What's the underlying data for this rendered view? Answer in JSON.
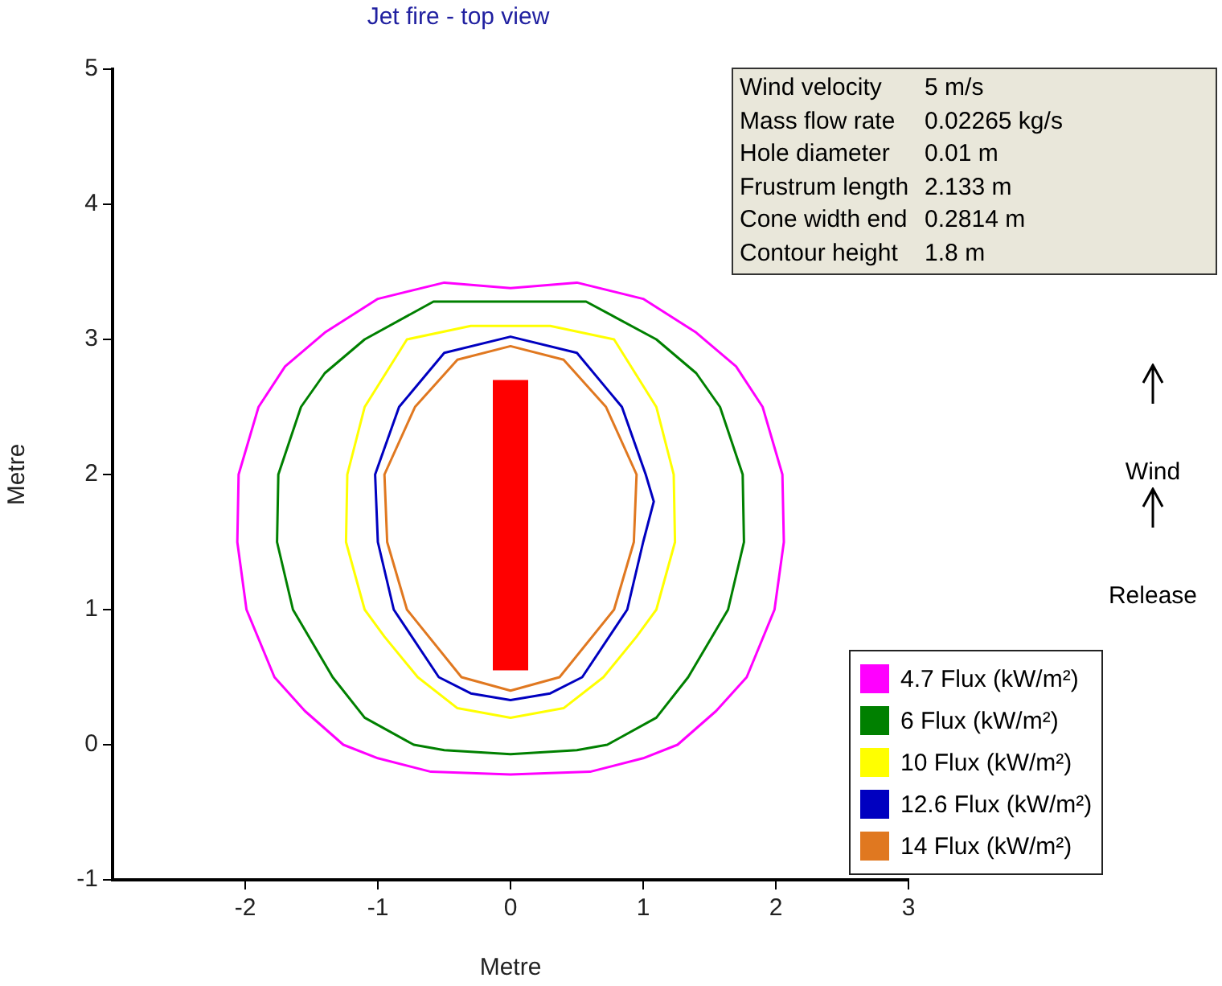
{
  "chart_data": {
    "type": "line",
    "title": "Jet fire - top view",
    "xlabel": "Metre",
    "ylabel": "Metre",
    "xlim": [
      -3,
      3
    ],
    "xticks": [
      -2,
      -1,
      0,
      1,
      2,
      3
    ],
    "ylim": [
      -1,
      5
    ],
    "yticks": [
      -1,
      0,
      1,
      2,
      3,
      4,
      5
    ],
    "grid": false,
    "marker": "none",
    "line_style": "solid",
    "annotations": [
      "Wind velocity",
      "5 m/s",
      "Mass flow rate",
      "0.02265 kg/s",
      "Hole diameter",
      "0.01 m",
      "Frustrum length",
      "2.133 m",
      "Cone width end",
      "0.2814 m",
      "Contour height",
      "1.8 m",
      "Wind",
      "Release",
      "4.7 Flux (kW/m²)",
      "6 Flux (kW/m²)",
      "10 Flux (kW/m²)",
      "12.6 Flux (kW/m²)",
      "14 Flux (kW/m²)"
    ],
    "series": [
      {
        "color": "#ff0000",
        "x": [
          0,
          0
        ],
        "values": [
          0.55,
          2.7
        ]
      }
    ]
  }
}
